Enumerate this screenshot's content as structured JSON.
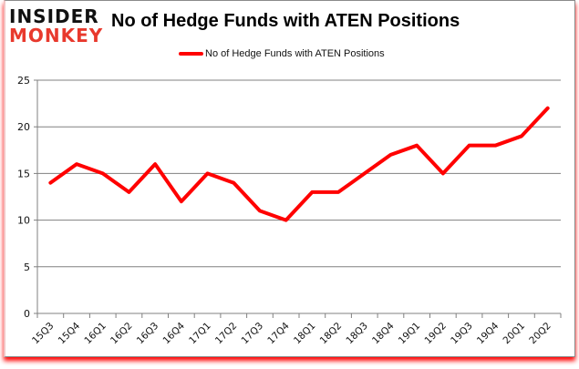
{
  "brand": {
    "line1": "INSIDER",
    "line2": "MONKEY"
  },
  "header": {
    "title": "No of Hedge Funds with ATEN Positions"
  },
  "legend": {
    "label": "No of Hedge Funds with ATEN Positions",
    "color": "#ff0000"
  },
  "colors": {
    "line": "#ff0000",
    "grid": "#808080",
    "shadow": "#ff0000",
    "logo_red": "#e8392d"
  },
  "chart_data": {
    "type": "line",
    "title": "No of Hedge Funds with ATEN Positions",
    "xlabel": "",
    "ylabel": "",
    "categories": [
      "15Q3",
      "15Q4",
      "16Q1",
      "16Q2",
      "16Q3",
      "16Q4",
      "17Q1",
      "17Q2",
      "17Q3",
      "17Q4",
      "18Q1",
      "18Q2",
      "18Q3",
      "18Q4",
      "19Q1",
      "19Q2",
      "19Q3",
      "19Q4",
      "20Q1",
      "20Q2"
    ],
    "series": [
      {
        "name": "No of Hedge Funds with ATEN Positions",
        "values": [
          14,
          16,
          15,
          13,
          16,
          12,
          15,
          14,
          11,
          10,
          13,
          13,
          15,
          17,
          18,
          15,
          18,
          18,
          19,
          22
        ]
      }
    ],
    "ylim": [
      0,
      25
    ],
    "yticks": [
      0,
      5,
      10,
      15,
      20,
      25
    ],
    "grid": true,
    "legend_position": "top"
  }
}
